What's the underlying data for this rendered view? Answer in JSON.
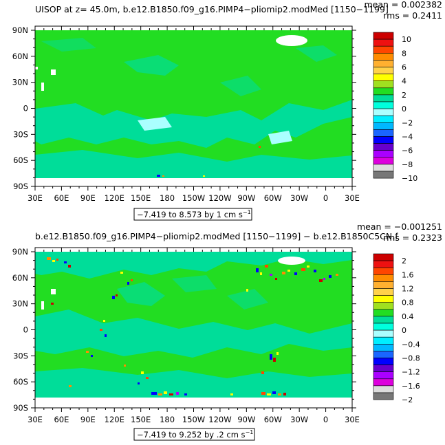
{
  "panels": [
    {
      "title": "UISOP at z=   45.0m, b.e12.B1850.f09_g16.PIMP4−pliomip2.modMed [1150−1199]",
      "mean": "mean = 0.002382",
      "rms": "rms = 0.2411",
      "range_label": "−7.419 to 8.573 by 1 cm s",
      "unit_superscript": "−1",
      "colorbar": {
        "labels": [
          "10",
          "8",
          "6",
          "4",
          "2",
          "0",
          "−2",
          "−4",
          "−6",
          "−8",
          "−10"
        ],
        "colors": [
          "#cc0000",
          "#ee1111",
          "#ff4500",
          "#ff8c00",
          "#ffb030",
          "#ffd24a",
          "#ffff00",
          "#a0e020",
          "#22dd22",
          "#00dd99",
          "#00ffdd",
          "#aaffff",
          "#00eeff",
          "#00b8ff",
          "#1a66ff",
          "#0000ff",
          "#6600cc",
          "#aa00ff",
          "#dd00dd",
          "#dddddd",
          "#777777"
        ]
      }
    },
    {
      "title": "b.e12.B1850.f09_g16.PIMP4−pliomip2.modMed [1150−1199] − b.e12.B1850C5CN.f",
      "mean": "mean = −0.001251",
      "rms": "rms = 0.2323",
      "range_label": "−7.419 to 9.252 by .2 cm s",
      "unit_superscript": "−1",
      "colorbar": {
        "labels": [
          "2",
          "1.6",
          "1.2",
          "0.8",
          "0.4",
          "0",
          "−0.4",
          "−0.8",
          "−1.2",
          "−1.6",
          "−2"
        ],
        "colors": [
          "#cc0000",
          "#ee1111",
          "#ff4500",
          "#ff8c00",
          "#ffb030",
          "#ffd24a",
          "#ffff00",
          "#a0e020",
          "#22dd22",
          "#00dd99",
          "#00ffdd",
          "#aaffff",
          "#00eeff",
          "#00b8ff",
          "#1a66ff",
          "#0000ff",
          "#6600cc",
          "#aa00ff",
          "#dd00dd",
          "#dddddd",
          "#777777"
        ]
      }
    }
  ],
  "axes": {
    "lat_labels": [
      "90N",
      "60N",
      "30N",
      "0",
      "30S",
      "60S",
      "90S"
    ],
    "lon_labels": [
      "30E",
      "60E",
      "90E",
      "120E",
      "150E",
      "180",
      "150W",
      "120W",
      "90W",
      "60W",
      "30W",
      "0",
      "30E"
    ]
  },
  "chart_data": [
    {
      "type": "heatmap",
      "title": "UISOP at z=   45.0m, b.e12.B1850.f09_g16.PIMP4−pliomip2.modMed [1150−1199]",
      "x": [
        "30E",
        "60E",
        "90E",
        "120E",
        "150E",
        "180",
        "150W",
        "120W",
        "90W",
        "60W",
        "30W",
        "0",
        "30E"
      ],
      "y": [
        "90N",
        "60N",
        "30N",
        "0",
        "30S",
        "60S",
        "90S"
      ],
      "value_range": [
        -7.419,
        8.573
      ],
      "contour_interval": 1,
      "units": "cm s−1",
      "colorbar_levels": [
        10,
        8,
        6,
        4,
        2,
        0,
        -2,
        -4,
        -6,
        -8,
        -10
      ],
      "mean": 0.002382,
      "rms": 0.2411
    },
    {
      "type": "heatmap",
      "title": "b.e12.B1850.f09_g16.PIMP4−pliomip2.modMed [1150−1199] − b.e12.B1850C5CN.f",
      "x": [
        "30E",
        "60E",
        "90E",
        "120E",
        "150E",
        "180",
        "150W",
        "120W",
        "90W",
        "60W",
        "30W",
        "0",
        "30E"
      ],
      "y": [
        "90N",
        "60N",
        "30N",
        "0",
        "30S",
        "60S",
        "90S"
      ],
      "value_range": [
        -7.419,
        9.252
      ],
      "contour_interval": 0.2,
      "units": "cm s−1",
      "colorbar_levels": [
        2,
        1.6,
        1.2,
        0.8,
        0.4,
        0,
        -0.4,
        -0.8,
        -1.2,
        -1.6,
        -2
      ],
      "mean": -0.001251,
      "rms": 0.2323
    }
  ]
}
